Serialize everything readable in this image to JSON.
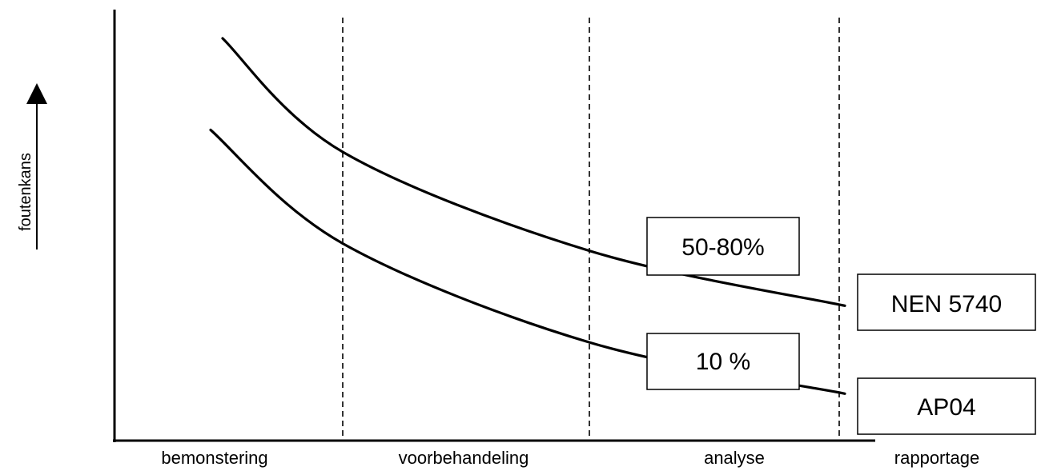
{
  "chart_data": {
    "type": "line",
    "ylabel": "foutenkans",
    "categories": [
      "bemonstering",
      "voorbehandeling",
      "analyse",
      "rapportage"
    ],
    "grid": false,
    "series": [
      {
        "name": "NEN 5740",
        "values": [
          1.0,
          0.69,
          0.42,
          0.27
        ],
        "annotation": "50-80%"
      },
      {
        "name": "AP04",
        "values": [
          0.75,
          0.44,
          0.17,
          0.03
        ],
        "annotation": "10 %"
      }
    ],
    "colors": {
      "line": "#000000",
      "background": "#ffffff"
    }
  }
}
